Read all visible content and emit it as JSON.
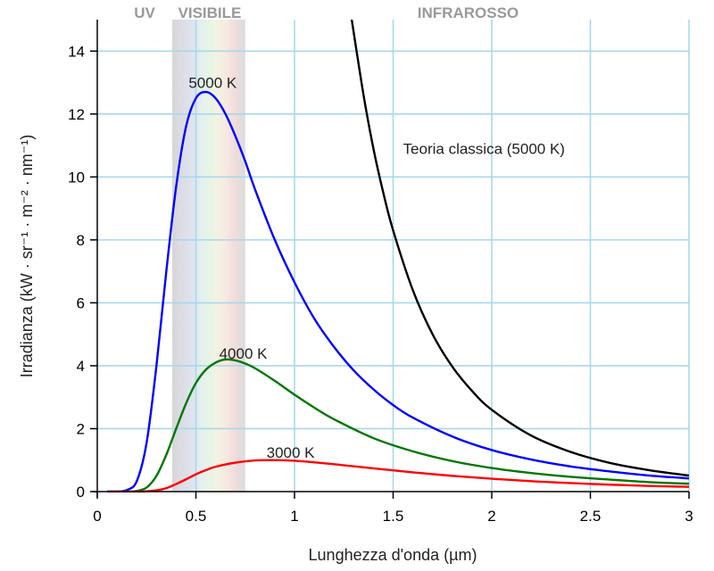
{
  "chart_data": {
    "type": "line",
    "xlabel": "Lunghezza d'onda (µm)",
    "ylabel": "Irradianza (kW · sr⁻¹ · m⁻² · nm⁻¹)",
    "xlim": [
      0,
      3
    ],
    "ylim": [
      0,
      15
    ],
    "xticks": [
      0,
      0.5,
      1,
      1.5,
      2,
      2.5,
      3
    ],
    "xtick_labels": [
      "0",
      "0.5",
      "1",
      "1.5",
      "2",
      "2.5",
      "3"
    ],
    "yticks": [
      0,
      2,
      4,
      6,
      8,
      10,
      12,
      14
    ],
    "ytick_labels": [
      "0",
      "2",
      "4",
      "6",
      "8",
      "10",
      "12",
      "14"
    ],
    "grid": true,
    "regions": [
      {
        "label": "UV",
        "x_center": 0.24
      },
      {
        "label": "VISIBILE",
        "x_center": 0.57,
        "band": [
          0.38,
          0.75
        ]
      },
      {
        "label": "INFRAROSSO",
        "x_center": 1.88
      }
    ],
    "series": [
      {
        "name": "5000 K",
        "color": "#0000ff",
        "x": [
          0.05,
          0.1,
          0.15,
          0.2,
          0.25,
          0.3,
          0.35,
          0.4,
          0.45,
          0.5,
          0.55,
          0.6,
          0.65,
          0.7,
          0.75,
          0.8,
          0.9,
          1.0,
          1.1,
          1.2,
          1.3,
          1.4,
          1.5,
          1.6,
          1.8,
          2.0,
          2.2,
          2.4,
          2.6,
          2.8,
          3.0
        ],
        "y": [
          0,
          0,
          0.05,
          0.33,
          1.55,
          4.0,
          7.0,
          9.7,
          11.6,
          12.5,
          12.7,
          12.5,
          12.0,
          11.3,
          10.5,
          9.6,
          8.0,
          6.65,
          5.5,
          4.6,
          3.85,
          3.25,
          2.75,
          2.35,
          1.75,
          1.32,
          1.02,
          0.8,
          0.64,
          0.51,
          0.42
        ]
      },
      {
        "name": "4000 K",
        "color": "#007700",
        "x": [
          0.05,
          0.1,
          0.15,
          0.2,
          0.25,
          0.3,
          0.35,
          0.4,
          0.45,
          0.5,
          0.55,
          0.6,
          0.65,
          0.7,
          0.75,
          0.8,
          0.9,
          1.0,
          1.1,
          1.2,
          1.4,
          1.6,
          1.8,
          2.0,
          2.2,
          2.4,
          2.6,
          2.8,
          3.0
        ],
        "y": [
          0,
          0,
          0,
          0.02,
          0.13,
          0.5,
          1.17,
          2.0,
          2.8,
          3.45,
          3.87,
          4.1,
          4.2,
          4.17,
          4.07,
          3.92,
          3.52,
          3.08,
          2.67,
          2.3,
          1.7,
          1.28,
          0.97,
          0.75,
          0.59,
          0.47,
          0.38,
          0.3,
          0.25
        ]
      },
      {
        "name": "3000 K",
        "color": "#ff0000",
        "x": [
          0.05,
          0.2,
          0.25,
          0.3,
          0.35,
          0.4,
          0.45,
          0.5,
          0.55,
          0.6,
          0.7,
          0.8,
          0.9,
          1.0,
          1.1,
          1.2,
          1.4,
          1.6,
          1.8,
          2.0,
          2.2,
          2.4,
          2.6,
          2.8,
          3.0
        ],
        "y": [
          0,
          0,
          0.01,
          0.04,
          0.11,
          0.24,
          0.39,
          0.55,
          0.68,
          0.79,
          0.92,
          0.99,
          1.0,
          0.98,
          0.93,
          0.87,
          0.74,
          0.61,
          0.5,
          0.41,
          0.33,
          0.27,
          0.22,
          0.18,
          0.15
        ]
      },
      {
        "name": "Teoria classica (5000 K)",
        "color": "#000000",
        "x": [
          1.29,
          1.35,
          1.4,
          1.45,
          1.5,
          1.6,
          1.7,
          1.8,
          1.9,
          2.0,
          2.2,
          2.4,
          2.6,
          2.8,
          3.0
        ],
        "y": [
          15.0,
          12.6,
          10.9,
          9.5,
          8.3,
          6.4,
          5.0,
          3.97,
          3.2,
          2.6,
          1.78,
          1.26,
          0.91,
          0.68,
          0.51
        ]
      }
    ],
    "annotations": [
      {
        "text": "5000 K",
        "x": 0.585,
        "y": 13.0
      },
      {
        "text": "4000 K",
        "x": 0.74,
        "y": 4.4
      },
      {
        "text": "3000 K",
        "x": 0.98,
        "y": 1.25
      },
      {
        "text": "Teoria classica (5000 K)",
        "x": 1.55,
        "y": 10.9
      }
    ]
  }
}
